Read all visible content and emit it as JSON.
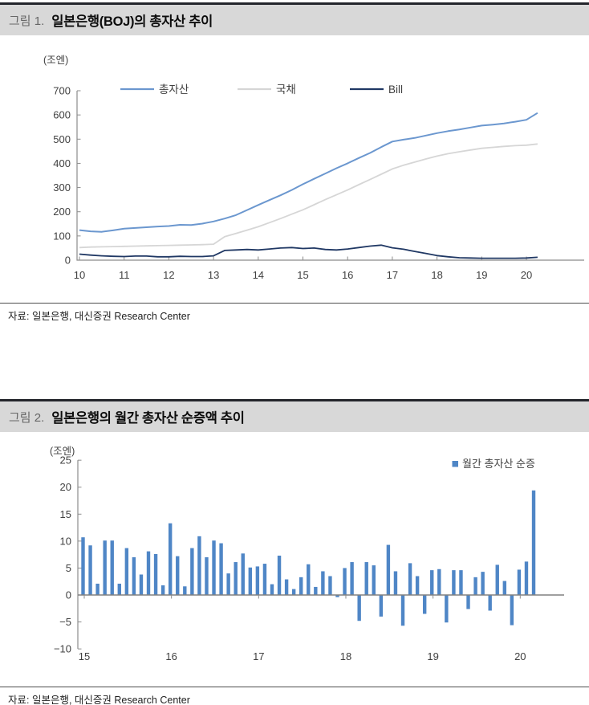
{
  "page": {
    "background": "#ffffff",
    "header_bg": "#d8d8d8",
    "header_border": "#23252b"
  },
  "figure1": {
    "label": "그림 1.",
    "title": "일본은행(BOJ)의 총자산 추이",
    "source": "자료: 일본은행, 대신증권 Research Center"
  },
  "figure2": {
    "label": "그림 2.",
    "title": "일본은행의 월간 총자산 순증액 추이",
    "source": "자료: 일본은행, 대신증권 Research Center"
  },
  "chart_data": [
    {
      "type": "line",
      "title": "일본은행(BOJ)의 총자산 추이",
      "unit_label": "(조엔)",
      "ylabel": "",
      "xlabel": "",
      "ylim": [
        0,
        700
      ],
      "yticks": [
        0,
        100,
        200,
        300,
        400,
        500,
        600,
        700
      ],
      "xtick_labels": [
        "10",
        "11",
        "12",
        "13",
        "14",
        "15",
        "16",
        "17",
        "18",
        "19",
        "20"
      ],
      "xtick_years": [
        2010,
        2011,
        2012,
        2013,
        2014,
        2015,
        2016,
        2017,
        2018,
        2019,
        2020
      ],
      "grid": false,
      "legend_position": "top",
      "axis_color": "#8c8c8c",
      "x": [
        2010.0,
        2010.25,
        2010.5,
        2010.75,
        2011.0,
        2011.25,
        2011.5,
        2011.75,
        2012.0,
        2012.25,
        2012.5,
        2012.75,
        2013.0,
        2013.25,
        2013.5,
        2013.75,
        2014.0,
        2014.25,
        2014.5,
        2014.75,
        2015.0,
        2015.25,
        2015.5,
        2015.75,
        2016.0,
        2016.25,
        2016.5,
        2016.75,
        2017.0,
        2017.25,
        2017.5,
        2017.75,
        2018.0,
        2018.25,
        2018.5,
        2018.75,
        2019.0,
        2019.25,
        2019.5,
        2019.75,
        2020.0,
        2020.25
      ],
      "series": [
        {
          "name": "총자산",
          "color": "#6b97cf",
          "width": 2,
          "values": [
            124,
            119,
            117,
            123,
            130,
            133,
            136,
            139,
            141,
            146,
            145,
            151,
            160,
            172,
            186,
            207,
            228,
            248,
            268,
            290,
            314,
            336,
            358,
            380,
            400,
            422,
            443,
            467,
            490,
            498,
            505,
            515,
            525,
            533,
            540,
            548,
            556,
            560,
            565,
            572,
            580,
            608
          ]
        },
        {
          "name": "국채",
          "color": "#d6d6d6",
          "width": 1.8,
          "values": [
            52,
            54,
            55,
            56,
            57,
            58,
            59,
            60,
            61,
            62,
            63,
            64,
            66,
            97,
            110,
            124,
            138,
            155,
            172,
            190,
            208,
            229,
            250,
            270,
            290,
            312,
            333,
            355,
            377,
            392,
            405,
            418,
            430,
            440,
            448,
            455,
            462,
            466,
            470,
            473,
            475,
            480
          ]
        },
        {
          "name": "Bill",
          "color": "#203864",
          "width": 1.8,
          "values": [
            25,
            21,
            18,
            16,
            15,
            17,
            17,
            14,
            14,
            16,
            15,
            15,
            18,
            40,
            42,
            44,
            42,
            46,
            50,
            52,
            48,
            50,
            44,
            42,
            46,
            52,
            58,
            62,
            51,
            45,
            36,
            28,
            19,
            14,
            10,
            9,
            8,
            8,
            8,
            8,
            9,
            12
          ]
        }
      ]
    },
    {
      "type": "bar",
      "title": "일본은행의 월간 총자산 순증액 추이",
      "unit_label": "(조엔)",
      "ylabel": "",
      "xlabel": "",
      "ylim": [
        -10,
        25
      ],
      "yticks": [
        -10,
        -5,
        0,
        5,
        10,
        15,
        20,
        25
      ],
      "xtick_labels": [
        "15",
        "16",
        "17",
        "18",
        "19",
        "20"
      ],
      "xtick_years": [
        2015,
        2016,
        2017,
        2018,
        2019,
        2020
      ],
      "grid": false,
      "legend": [
        "월간 총자산 순증"
      ],
      "legend_position": "top-right",
      "bar_color": "#4f86c6",
      "axis_color": "#8c8c8c",
      "start_month": "2015-01",
      "values": [
        10.7,
        9.2,
        2.1,
        10.1,
        10.1,
        2.1,
        8.7,
        7.0,
        3.8,
        8.1,
        7.6,
        1.8,
        13.3,
        7.2,
        1.6,
        8.7,
        10.9,
        7.0,
        10.1,
        9.6,
        4.0,
        6.1,
        7.7,
        5.1,
        5.3,
        5.8,
        2.0,
        7.3,
        2.9,
        1.1,
        3.3,
        5.7,
        1.5,
        4.4,
        3.5,
        -0.4,
        5.0,
        6.1,
        -4.8,
        6.1,
        5.5,
        -4.0,
        9.3,
        4.4,
        -5.7,
        5.9,
        3.5,
        -3.5,
        4.6,
        4.8,
        -5.1,
        4.6,
        4.6,
        -2.6,
        3.3,
        4.3,
        -2.9,
        5.6,
        2.6,
        -5.6,
        4.7,
        6.2,
        19.4
      ]
    }
  ]
}
